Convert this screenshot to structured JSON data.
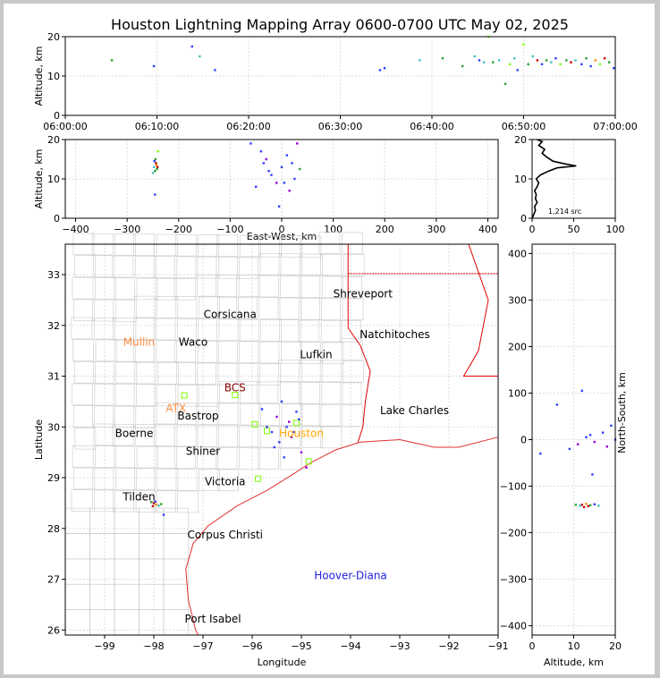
{
  "title": "Houston Lightning Mapping Array 0600-0700 UTC May 02, 2025",
  "colors": {
    "grid": "#dddddd",
    "county": "#c8c8c8",
    "coast": "#e03030",
    "state": "#e00000",
    "histogram": "#000000"
  },
  "chart_data": [
    {
      "id": "time-height",
      "type": "scatter",
      "ylabel": "Altitude, km",
      "xlabel": "",
      "xlim": [
        "06:00:00",
        "07:00:00"
      ],
      "ylim": [
        0,
        20
      ],
      "x_ticks": [
        "06:00:00",
        "06:10:00",
        "06:20:00",
        "06:30:00",
        "06:40:00",
        "06:50:00",
        "07:00:00"
      ],
      "y_ticks": [
        0,
        10,
        20
      ],
      "points": [
        {
          "t": "06:05:05",
          "z": 14,
          "c": "#2ca02c"
        },
        {
          "t": "06:09:40",
          "z": 12.5,
          "c": "#3040ff"
        },
        {
          "t": "06:13:50",
          "z": 17.5,
          "c": "#3040ff"
        },
        {
          "t": "06:14:40",
          "z": 15,
          "c": "#40c0c0"
        },
        {
          "t": "06:16:20",
          "z": 11.5,
          "c": "#3040ff"
        },
        {
          "t": "06:34:20",
          "z": 11.5,
          "c": "#3040ff"
        },
        {
          "t": "06:34:50",
          "z": 12,
          "c": "#3040ff"
        },
        {
          "t": "06:38:40",
          "z": 14,
          "c": "#40c0c0"
        },
        {
          "t": "06:41:10",
          "z": 14.5,
          "c": "#2ca02c"
        },
        {
          "t": "06:43:20",
          "z": 12.5,
          "c": "#2ca02c"
        },
        {
          "t": "06:44:40",
          "z": 15,
          "c": "#40c0c0"
        },
        {
          "t": "06:45:10",
          "z": 14,
          "c": "#3040ff"
        },
        {
          "t": "06:45:40",
          "z": 13.5,
          "c": "#40c0c0"
        },
        {
          "t": "06:46:10",
          "z": 20,
          "c": "#7fff00"
        },
        {
          "t": "06:46:40",
          "z": 13.5,
          "c": "#2ca02c"
        },
        {
          "t": "06:47:20",
          "z": 14,
          "c": "#40c0c0"
        },
        {
          "t": "06:48:00",
          "z": 8,
          "c": "#2ca02c"
        },
        {
          "t": "06:48:30",
          "z": 13,
          "c": "#7fff00"
        },
        {
          "t": "06:49:00",
          "z": 14.5,
          "c": "#40c0c0"
        },
        {
          "t": "06:49:20",
          "z": 11.5,
          "c": "#3040ff"
        },
        {
          "t": "06:50:00",
          "z": 18,
          "c": "#7fff00"
        },
        {
          "t": "06:50:30",
          "z": 13,
          "c": "#2ca02c"
        },
        {
          "t": "06:51:00",
          "z": 15,
          "c": "#40c0c0"
        },
        {
          "t": "06:51:30",
          "z": 14,
          "c": "#cc0000"
        },
        {
          "t": "06:52:00",
          "z": 13,
          "c": "#3040ff"
        },
        {
          "t": "06:52:30",
          "z": 14,
          "c": "#2ca02c"
        },
        {
          "t": "06:53:00",
          "z": 13.5,
          "c": "#40c0c0"
        },
        {
          "t": "06:53:30",
          "z": 14.5,
          "c": "#3040ff"
        },
        {
          "t": "06:54:00",
          "z": 13,
          "c": "#7fff00"
        },
        {
          "t": "06:54:40",
          "z": 14,
          "c": "#2ca02c"
        },
        {
          "t": "06:55:10",
          "z": 13.5,
          "c": "#cc0000"
        },
        {
          "t": "06:55:40",
          "z": 14,
          "c": "#40c0c0"
        },
        {
          "t": "06:56:20",
          "z": 13,
          "c": "#3040ff"
        },
        {
          "t": "06:56:50",
          "z": 14.5,
          "c": "#2ca02c"
        },
        {
          "t": "06:57:20",
          "z": 12.5,
          "c": "#3040ff"
        },
        {
          "t": "06:57:50",
          "z": 14,
          "c": "#ff8c00"
        },
        {
          "t": "06:58:20",
          "z": 13,
          "c": "#7fff00"
        },
        {
          "t": "06:58:50",
          "z": 14.5,
          "c": "#cc0000"
        },
        {
          "t": "06:59:20",
          "z": 13.5,
          "c": "#2ca02c"
        },
        {
          "t": "06:59:50",
          "z": 12,
          "c": "#3040ff"
        }
      ]
    },
    {
      "id": "east-west-height",
      "type": "scatter",
      "xlabel": "East-West, km",
      "ylabel": "Altitude, km",
      "xlim": [
        -420,
        420
      ],
      "ylim": [
        0,
        20
      ],
      "x_ticks": [
        -400,
        -300,
        -200,
        -100,
        0,
        100,
        200,
        300,
        400
      ],
      "y_ticks": [
        0,
        10,
        20
      ],
      "points": [
        {
          "x": -246,
          "z": 12,
          "c": "#2ca02c"
        },
        {
          "x": -244,
          "z": 14,
          "c": "#cc0000"
        },
        {
          "x": -248,
          "z": 13,
          "c": "#40c0c0"
        },
        {
          "x": -245,
          "z": 15,
          "c": "#2ca02c"
        },
        {
          "x": -243,
          "z": 13.5,
          "c": "#ff8c00"
        },
        {
          "x": -247,
          "z": 14.5,
          "c": "#3040ff"
        },
        {
          "x": -242,
          "z": 12.5,
          "c": "#2ca02c"
        },
        {
          "x": -250,
          "z": 11.5,
          "c": "#40c0c0"
        },
        {
          "x": -241,
          "z": 13,
          "c": "#cc0000"
        },
        {
          "x": -246,
          "z": 6,
          "c": "#3040ff"
        },
        {
          "x": -240,
          "z": 17,
          "c": "#7fff00"
        },
        {
          "x": -60,
          "z": 19,
          "c": "#3040ff"
        },
        {
          "x": -40,
          "z": 17,
          "c": "#3040ff"
        },
        {
          "x": -35,
          "z": 14,
          "c": "#3040ff"
        },
        {
          "x": -30,
          "z": 15,
          "c": "#9400d3"
        },
        {
          "x": -25,
          "z": 12,
          "c": "#3040ff"
        },
        {
          "x": -20,
          "z": 11,
          "c": "#3040ff"
        },
        {
          "x": -10,
          "z": 9,
          "c": "#9400d3"
        },
        {
          "x": 0,
          "z": 13,
          "c": "#3040ff"
        },
        {
          "x": 5,
          "z": 9,
          "c": "#3040ff"
        },
        {
          "x": 10,
          "z": 16,
          "c": "#3040ff"
        },
        {
          "x": 15,
          "z": 7,
          "c": "#9400d3"
        },
        {
          "x": 20,
          "z": 14,
          "c": "#3040ff"
        },
        {
          "x": 25,
          "z": 10,
          "c": "#3040ff"
        },
        {
          "x": 30,
          "z": 19,
          "c": "#9400d3"
        },
        {
          "x": -50,
          "z": 8,
          "c": "#3040ff"
        },
        {
          "x": -5,
          "z": 3,
          "c": "#3040ff"
        },
        {
          "x": 35,
          "z": 12.5,
          "c": "#2ca02c"
        }
      ]
    },
    {
      "id": "altitude-histogram",
      "type": "line",
      "xlim": [
        0,
        100
      ],
      "ylim": [
        0,
        20
      ],
      "x_ticks": [
        0,
        50,
        100
      ],
      "y_ticks": [
        0,
        10,
        20
      ],
      "annotation": "1,214 src",
      "profile": [
        [
          0,
          0
        ],
        [
          2,
          1
        ],
        [
          4,
          2
        ],
        [
          3,
          3
        ],
        [
          6,
          4
        ],
        [
          4,
          5
        ],
        [
          5,
          6
        ],
        [
          3,
          7
        ],
        [
          6,
          8
        ],
        [
          8,
          9
        ],
        [
          5,
          10
        ],
        [
          10,
          11
        ],
        [
          20,
          12
        ],
        [
          30,
          12.8
        ],
        [
          53,
          13.3
        ],
        [
          40,
          13.8
        ],
        [
          25,
          14.5
        ],
        [
          18,
          15.5
        ],
        [
          12,
          16.5
        ],
        [
          15,
          17.5
        ],
        [
          8,
          18.5
        ],
        [
          12,
          19.5
        ],
        [
          6,
          20
        ]
      ]
    },
    {
      "id": "plan-view",
      "type": "scatter",
      "xlabel": "Longitude",
      "ylabel": "Latitude",
      "xlim": [
        -99.8,
        -91
      ],
      "ylim": [
        25.9,
        33.6
      ],
      "x_ticks": [
        -99,
        -98,
        -97,
        -96,
        -95,
        -94,
        -93,
        -92,
        -91
      ],
      "y_ticks": [
        26,
        27,
        28,
        29,
        30,
        31,
        32,
        33
      ],
      "points": [
        {
          "lon": -98.0,
          "lat": 28.5,
          "c": "#cc0000"
        },
        {
          "lon": -97.95,
          "lat": 28.47,
          "c": "#ff8c00"
        },
        {
          "lon": -98.05,
          "lat": 28.52,
          "c": "#2ca02c"
        },
        {
          "lon": -97.9,
          "lat": 28.45,
          "c": "#40c0c0"
        },
        {
          "lon": -98.02,
          "lat": 28.44,
          "c": "#cc0000"
        },
        {
          "lon": -97.97,
          "lat": 28.53,
          "c": "#3040ff"
        },
        {
          "lon": -97.85,
          "lat": 28.48,
          "c": "#2ca02c"
        },
        {
          "lon": -97.8,
          "lat": 28.27,
          "c": "#3040ff"
        },
        {
          "lon": -95.4,
          "lat": 30.5,
          "c": "#3040ff"
        },
        {
          "lon": -95.5,
          "lat": 30.2,
          "c": "#9400d3"
        },
        {
          "lon": -95.3,
          "lat": 30.0,
          "c": "#3040ff"
        },
        {
          "lon": -95.6,
          "lat": 29.9,
          "c": "#3040ff"
        },
        {
          "lon": -95.2,
          "lat": 29.8,
          "c": "#9400d3"
        },
        {
          "lon": -95.45,
          "lat": 29.7,
          "c": "#3040ff"
        },
        {
          "lon": -95.1,
          "lat": 30.3,
          "c": "#3040ff"
        },
        {
          "lon": -95.0,
          "lat": 29.5,
          "c": "#9400d3"
        },
        {
          "lon": -95.55,
          "lat": 29.6,
          "c": "#3040ff"
        },
        {
          "lon": -95.35,
          "lat": 29.4,
          "c": "#3040ff"
        },
        {
          "lon": -94.9,
          "lat": 29.2,
          "c": "#9400d3"
        },
        {
          "lon": -95.7,
          "lat": 30.0,
          "c": "#3040ff"
        },
        {
          "lon": -95.25,
          "lat": 30.1,
          "c": "#9400d3"
        },
        {
          "lon": -95.15,
          "lat": 29.9,
          "c": "#3040ff"
        },
        {
          "lon": -95.8,
          "lat": 30.35,
          "c": "#3040ff"
        },
        {
          "lon": -95.05,
          "lat": 30.15,
          "c": "#3040ff"
        }
      ],
      "cities": [
        {
          "name": "Shreveport",
          "lon": -93.75,
          "lat": 32.55,
          "color": "#000000"
        },
        {
          "name": "Corsicana",
          "lon": -96.45,
          "lat": 32.15,
          "color": "#000000"
        },
        {
          "name": "Natchitoches",
          "lon": -93.1,
          "lat": 31.75,
          "color": "#000000"
        },
        {
          "name": "Mullin",
          "lon": -98.3,
          "lat": 31.6,
          "color": "#ff8c40"
        },
        {
          "name": "Waco",
          "lon": -97.2,
          "lat": 31.6,
          "color": "#000000"
        },
        {
          "name": "Lufkin",
          "lon": -94.7,
          "lat": 31.35,
          "color": "#000000"
        },
        {
          "name": "BCS",
          "lon": -96.35,
          "lat": 30.7,
          "color": "#8b0000"
        },
        {
          "name": "ATX",
          "lon": -97.55,
          "lat": 30.3,
          "color": "#ff8c40"
        },
        {
          "name": "Bastrop",
          "lon": -97.1,
          "lat": 30.15,
          "color": "#000000"
        },
        {
          "name": "Lake Charles",
          "lon": -92.7,
          "lat": 30.25,
          "color": "#000000"
        },
        {
          "name": "Boerne",
          "lon": -98.4,
          "lat": 29.8,
          "color": "#000000"
        },
        {
          "name": "Houston",
          "lon": -95.0,
          "lat": 29.8,
          "color": "#ffa500"
        },
        {
          "name": "Shiner",
          "lon": -97.0,
          "lat": 29.45,
          "color": "#000000"
        },
        {
          "name": "Victoria",
          "lon": -96.55,
          "lat": 28.85,
          "color": "#000000"
        },
        {
          "name": "Tilden",
          "lon": -98.3,
          "lat": 28.55,
          "color": "#000000"
        },
        {
          "name": "Corpus Christi",
          "lon": -96.55,
          "lat": 27.8,
          "color": "#000000"
        },
        {
          "name": "Hoover-Diana",
          "lon": -94.0,
          "lat": 27.0,
          "color": "#2020e0"
        },
        {
          "name": "Port Isabel",
          "lon": -96.8,
          "lat": 26.15,
          "color": "#000000"
        }
      ],
      "stations": [
        {
          "lon": -97.38,
          "lat": 30.62
        },
        {
          "lon": -96.35,
          "lat": 30.63
        },
        {
          "lon": -95.95,
          "lat": 30.05
        },
        {
          "lon": -95.7,
          "lat": 29.92
        },
        {
          "lon": -95.1,
          "lat": 30.08
        },
        {
          "lon": -94.85,
          "lat": 29.32
        },
        {
          "lon": -95.88,
          "lat": 28.98
        }
      ]
    },
    {
      "id": "north-south-height",
      "type": "scatter",
      "xlabel": "Altitude, km",
      "ylabel": "North-South, km",
      "xlim": [
        0,
        20
      ],
      "ylim": [
        -420,
        420
      ],
      "x_ticks": [
        0,
        10,
        20
      ],
      "y_ticks": [
        -400,
        -300,
        -200,
        -100,
        0,
        100,
        200,
        300,
        400
      ],
      "points": [
        {
          "z": 12,
          "y": -140,
          "c": "#cc0000"
        },
        {
          "z": 13,
          "y": -138,
          "c": "#ff8c00"
        },
        {
          "z": 11.5,
          "y": -142,
          "c": "#40c0c0"
        },
        {
          "z": 14,
          "y": -141,
          "c": "#2ca02c"
        },
        {
          "z": 12.5,
          "y": -145,
          "c": "#cc0000"
        },
        {
          "z": 15,
          "y": -139,
          "c": "#3040ff"
        },
        {
          "z": 13.5,
          "y": -143,
          "c": "#cc0000"
        },
        {
          "z": 10.5,
          "y": -140,
          "c": "#2ca02c"
        },
        {
          "z": 16,
          "y": -142,
          "c": "#40c0c0"
        },
        {
          "z": 14.5,
          "y": -75,
          "c": "#3040ff"
        },
        {
          "z": 12,
          "y": 105,
          "c": "#3040ff"
        },
        {
          "z": 9,
          "y": -20,
          "c": "#3040ff"
        },
        {
          "z": 11,
          "y": -10,
          "c": "#9400d3"
        },
        {
          "z": 13,
          "y": 5,
          "c": "#3040ff"
        },
        {
          "z": 15,
          "y": -5,
          "c": "#9400d3"
        },
        {
          "z": 17,
          "y": 15,
          "c": "#3040ff"
        },
        {
          "z": 19,
          "y": 30,
          "c": "#3040ff"
        },
        {
          "z": 18,
          "y": -15,
          "c": "#9400d3"
        },
        {
          "z": 14,
          "y": 10,
          "c": "#3040ff"
        },
        {
          "z": 6,
          "y": 75,
          "c": "#3040ff"
        },
        {
          "z": 2,
          "y": -30,
          "c": "#3040ff"
        },
        {
          "z": 20,
          "y": 0,
          "c": "#3040ff"
        }
      ]
    }
  ]
}
